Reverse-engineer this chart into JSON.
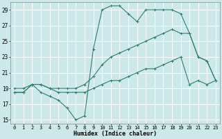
{
  "xlabel": "Humidex (Indice chaleur)",
  "bg_color": "#cce8e8",
  "grid_color": "#ffffff",
  "line_color": "#2e7d6e",
  "xlim": [
    -0.5,
    23.5
  ],
  "ylim": [
    14.5,
    30.0
  ],
  "xticks": [
    0,
    1,
    2,
    3,
    4,
    5,
    6,
    7,
    8,
    9,
    10,
    11,
    12,
    13,
    14,
    15,
    16,
    17,
    18,
    19,
    20,
    21,
    22,
    23
  ],
  "yticks": [
    15,
    17,
    19,
    21,
    23,
    25,
    27,
    29
  ],
  "line1_y": [
    18.5,
    18.5,
    19.5,
    19.5,
    19.0,
    18.5,
    18.5,
    18.5,
    18.5,
    19.0,
    19.5,
    20.0,
    20.0,
    20.5,
    21.0,
    21.5,
    21.5,
    22.0,
    22.5,
    23.0,
    19.5,
    20.0,
    19.5,
    20.0
  ],
  "line2_y": [
    19.0,
    19.0,
    19.5,
    19.5,
    19.0,
    19.0,
    19.0,
    19.0,
    19.5,
    20.5,
    22.0,
    23.0,
    23.5,
    24.0,
    24.5,
    25.0,
    25.5,
    26.0,
    26.5,
    26.0,
    26.0,
    23.0,
    22.5,
    20.0
  ],
  "line3_y": [
    18.5,
    18.5,
    19.5,
    18.5,
    18.0,
    17.5,
    16.5,
    15.0,
    15.5,
    24.0,
    29.0,
    29.5,
    29.5,
    28.5,
    27.5,
    29.0,
    29.0,
    29.0,
    29.0,
    28.5,
    26.0,
    23.0,
    22.5,
    20.0
  ]
}
